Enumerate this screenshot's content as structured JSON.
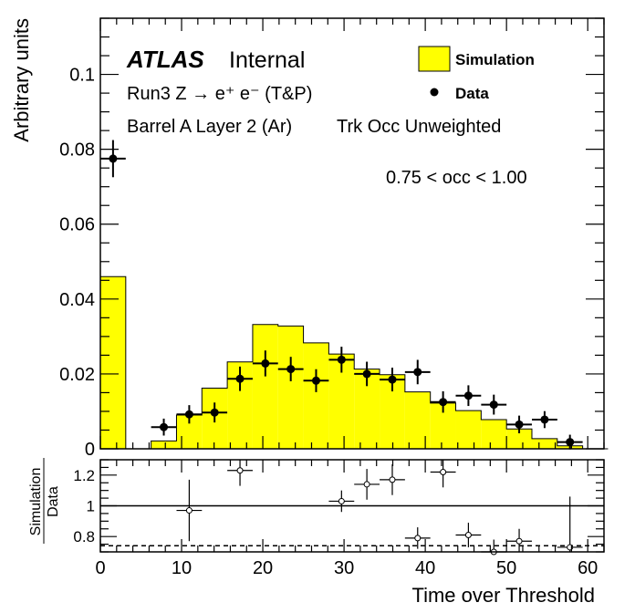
{
  "labels": {
    "atlas": "ATLAS",
    "internal": "Internal",
    "process": "Run3 Z → e⁺ e⁻ (T&P)",
    "region": "Barrel A Layer 2 (Ar)",
    "weighting": "Trk Occ Unweighted",
    "occ_range": "0.75 < occ < 1.00",
    "legend_sim": "Simulation",
    "legend_data": "Data",
    "ratio_num": "Simulation",
    "ratio_den": "Data"
  },
  "colors": {
    "simulation_fill": "#ffff00",
    "axis": "#000000",
    "data_marker": "#000000"
  },
  "chart_data": [
    {
      "type": "bar",
      "name": "main-panel",
      "xlabel": "",
      "ylabel": "Arbitrary units",
      "xlim": [
        0,
        62
      ],
      "ylim": [
        0,
        0.115
      ],
      "xticks": [
        0,
        10,
        20,
        30,
        40,
        50,
        60
      ],
      "yticks": [
        0,
        0.02,
        0.04,
        0.06,
        0.08,
        0.1
      ],
      "ytick_labels": [
        "0",
        "0.02",
        "0.04",
        "0.06",
        "0.08",
        "0.1"
      ],
      "simulation": {
        "legend": "Simulation",
        "bin_width": 3.125,
        "bin_edges_start": 0,
        "values": [
          0.046,
          0.0,
          0.0021,
          0.009,
          0.0162,
          0.0232,
          0.0332,
          0.0328,
          0.0283,
          0.0253,
          0.0213,
          0.0198,
          0.0152,
          0.0122,
          0.0102,
          0.0078,
          0.0053,
          0.0027,
          0.0008,
          0.0
        ]
      },
      "data": {
        "legend": "Data",
        "x": [
          1.56,
          7.81,
          10.94,
          14.06,
          17.19,
          20.31,
          23.44,
          26.56,
          29.69,
          32.81,
          35.94,
          39.06,
          42.19,
          45.31,
          48.44,
          51.56,
          54.69,
          57.81
        ],
        "y": [
          0.0775,
          0.0058,
          0.0092,
          0.0097,
          0.0187,
          0.0228,
          0.0213,
          0.0182,
          0.0238,
          0.02,
          0.0185,
          0.0205,
          0.0125,
          0.0142,
          0.0118,
          0.0065,
          0.0078,
          0.0018
        ],
        "yerr": [
          0.0035,
          0.0008,
          0.001,
          0.0012,
          0.0018,
          0.002,
          0.0018,
          0.0016,
          0.002,
          0.0018,
          0.0017,
          0.0018,
          0.0014,
          0.0013,
          0.0012,
          0.0009,
          0.0008,
          0.0005
        ]
      }
    },
    {
      "type": "scatter",
      "name": "ratio-panel",
      "xlabel": "Time over Threshold",
      "ylabel": "Simulation / Data",
      "xlim": [
        0,
        62
      ],
      "ylim": [
        0.7,
        1.3
      ],
      "xticks": [
        0,
        10,
        20,
        30,
        40,
        50,
        60
      ],
      "yticks": [
        0.8,
        1.0,
        1.2
      ],
      "ytick_labels": [
        "0.8",
        "1",
        "1.2"
      ],
      "reference_lines": [
        1.0,
        0.74
      ],
      "x": [
        10.94,
        17.19,
        29.69,
        32.81,
        35.94,
        39.06,
        42.19,
        45.31,
        48.44,
        51.56,
        57.81
      ],
      "y": [
        0.97,
        1.23,
        1.03,
        1.14,
        1.17,
        0.79,
        1.22,
        0.81,
        0.7,
        0.77,
        0.73
      ],
      "yerr": [
        0.2,
        0.1,
        0.07,
        0.1,
        0.1,
        0.07,
        0.1,
        0.08,
        0.08,
        0.08,
        0.33
      ]
    }
  ]
}
